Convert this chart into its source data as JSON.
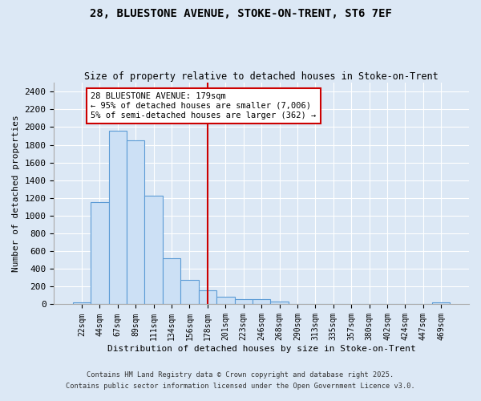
{
  "title_line1": "28, BLUESTONE AVENUE, STOKE-ON-TRENT, ST6 7EF",
  "title_line2": "Size of property relative to detached houses in Stoke-on-Trent",
  "xlabel": "Distribution of detached houses by size in Stoke-on-Trent",
  "ylabel": "Number of detached properties",
  "categories": [
    "22sqm",
    "44sqm",
    "67sqm",
    "89sqm",
    "111sqm",
    "134sqm",
    "156sqm",
    "178sqm",
    "201sqm",
    "223sqm",
    "246sqm",
    "268sqm",
    "290sqm",
    "313sqm",
    "335sqm",
    "357sqm",
    "380sqm",
    "402sqm",
    "424sqm",
    "447sqm",
    "469sqm"
  ],
  "values": [
    25,
    1150,
    1960,
    1850,
    1230,
    520,
    280,
    155,
    85,
    55,
    55,
    35,
    0,
    0,
    0,
    0,
    0,
    0,
    0,
    0,
    20
  ],
  "bar_color": "#cce0f5",
  "bar_edge_color": "#5b9bd5",
  "marker_index": 7,
  "marker_color": "#cc0000",
  "annotation_text": "28 BLUESTONE AVENUE: 179sqm\n← 95% of detached houses are smaller (7,006)\n5% of semi-detached houses are larger (362) →",
  "annotation_box_color": "#cc0000",
  "ylim": [
    0,
    2500
  ],
  "yticks": [
    0,
    200,
    400,
    600,
    800,
    1000,
    1200,
    1400,
    1600,
    1800,
    2000,
    2200,
    2400
  ],
  "footnote1": "Contains HM Land Registry data © Crown copyright and database right 2025.",
  "footnote2": "Contains public sector information licensed under the Open Government Licence v3.0.",
  "bg_color": "#dce8f5",
  "plot_bg_color": "#dce8f5",
  "grid_color": "#ffffff",
  "spine_color": "#aaaaaa"
}
